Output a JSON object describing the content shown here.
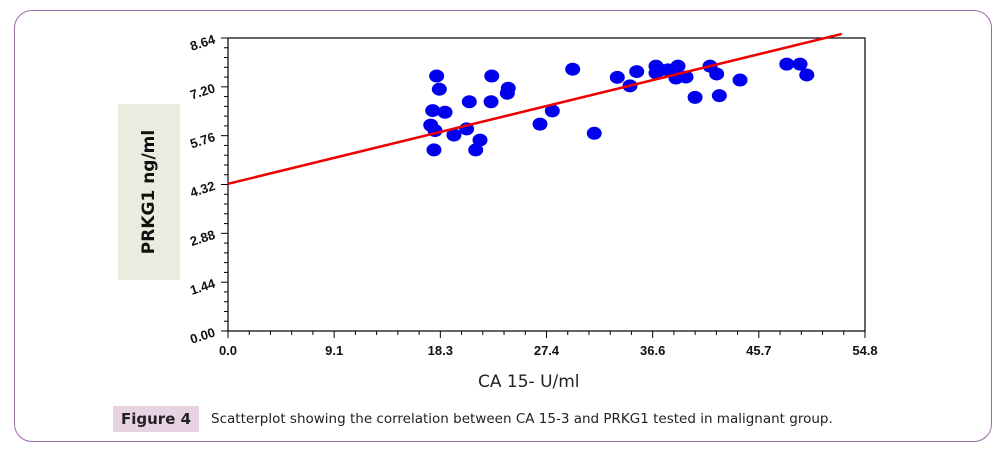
{
  "figure": {
    "badge": "Figure 4",
    "caption": "Scatterplot showing the correlation between CA 15-3 and PRKG1 tested in malignant group."
  },
  "colors": {
    "point": "#0000ee",
    "regression_line": "#ee0000",
    "frame": "#9b6aa7",
    "grid": "#a0a0a0",
    "badge_bg": "#e7d3e2",
    "ylabel_bg": "#ecebdf"
  },
  "chart_data": {
    "type": "scatter",
    "title": "",
    "xlabel": "CA 15- U/ml",
    "ylabel": "PRKG1 ng/ml",
    "xlim": [
      0,
      54.8
    ],
    "ylim": [
      0,
      8.64
    ],
    "x_ticks": [
      "0.0",
      "9.1",
      "18.3",
      "27.4",
      "36.6",
      "45.7",
      "54.8"
    ],
    "y_ticks": [
      "0.00",
      "1.44",
      "2.88",
      "4.32",
      "5.76",
      "7.20",
      "8.64"
    ],
    "grid": "horizontal",
    "legend": "none",
    "series": [
      {
        "name": "malignant group",
        "points": [
          [
            17.95,
            7.52
          ],
          [
            18.18,
            7.13
          ],
          [
            22.69,
            7.52
          ],
          [
            24.11,
            7.16
          ],
          [
            24.03,
            7.01
          ],
          [
            20.76,
            6.76
          ],
          [
            22.63,
            6.76
          ],
          [
            17.61,
            6.5
          ],
          [
            18.67,
            6.45
          ],
          [
            17.44,
            6.07
          ],
          [
            17.81,
            5.91
          ],
          [
            19.44,
            5.78
          ],
          [
            20.53,
            5.96
          ],
          [
            21.68,
            5.63
          ],
          [
            21.31,
            5.34
          ],
          [
            17.72,
            5.34
          ],
          [
            29.65,
            7.72
          ],
          [
            33.49,
            7.48
          ],
          [
            35.16,
            7.65
          ],
          [
            34.58,
            7.23
          ],
          [
            27.9,
            6.49
          ],
          [
            26.84,
            6.1
          ],
          [
            31.51,
            5.83
          ],
          [
            36.82,
            7.81
          ],
          [
            37.17,
            7.7
          ],
          [
            36.82,
            7.61
          ],
          [
            37.85,
            7.7
          ],
          [
            38.37,
            7.64
          ],
          [
            38.71,
            7.81
          ],
          [
            38.54,
            7.46
          ],
          [
            39.4,
            7.49
          ],
          [
            41.47,
            7.81
          ],
          [
            42.04,
            7.58
          ],
          [
            44.05,
            7.4
          ],
          [
            40.18,
            6.89
          ],
          [
            42.27,
            6.94
          ],
          [
            48.07,
            7.87
          ],
          [
            49.21,
            7.87
          ],
          [
            49.79,
            7.55
          ]
        ]
      }
    ],
    "regression_line": {
      "x_start": 0,
      "y_start": 4.34,
      "x_end": 52.8,
      "y_end": 8.76
    }
  }
}
